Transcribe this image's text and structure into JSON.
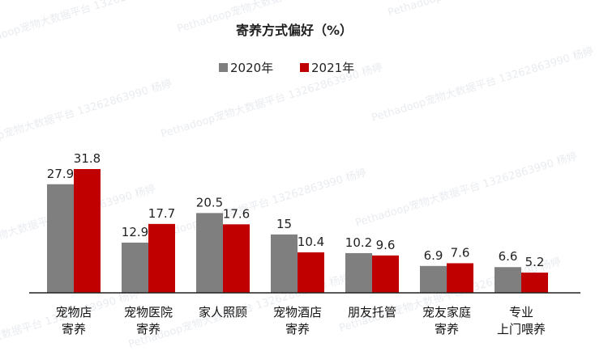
{
  "chart_data": {
    "type": "bar",
    "title": "寄养方式偏好（%）",
    "categories": [
      [
        "宠物店",
        "寄养"
      ],
      [
        "宠物医院",
        "寄养"
      ],
      [
        "家人照顾"
      ],
      [
        "宠物酒店",
        "寄养"
      ],
      [
        "朋友托管"
      ],
      [
        "宠友家庭",
        "寄养"
      ],
      [
        "专业",
        "上门喂养"
      ]
    ],
    "series": [
      {
        "name": "2020年",
        "color": "#7f7f7f",
        "values": [
          27.9,
          12.9,
          20.5,
          15,
          10.2,
          6.9,
          6.6
        ]
      },
      {
        "name": "2021年",
        "color": "#c00000",
        "values": [
          31.8,
          17.7,
          17.6,
          10.4,
          9.6,
          7.6,
          5.2
        ]
      }
    ],
    "legend_position": "top-center",
    "grid": false,
    "ylim": [
      0,
      35
    ],
    "xlabel": "",
    "ylabel": ""
  },
  "watermark_text": "Pethadoop宠物大数据平台 13262863990 杨婷"
}
